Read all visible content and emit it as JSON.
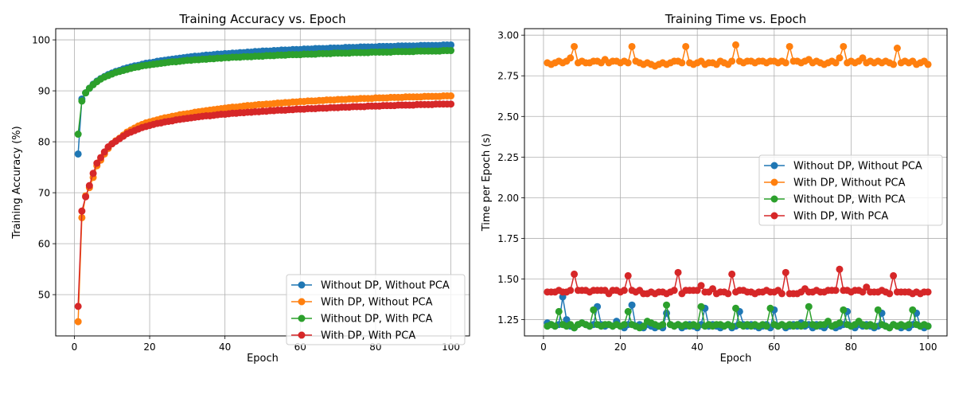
{
  "colors": {
    "blue": "#1f77b4",
    "orange": "#ff7f0e",
    "green": "#2ca02c",
    "red": "#d62728",
    "grid": "#b0b0b0"
  },
  "chart_data": [
    {
      "type": "line",
      "title": "Training Accuracy vs. Epoch",
      "xlabel": "Epoch",
      "ylabel": "Training Accuracy (%)",
      "xlim": [
        -4.95,
        104.95
      ],
      "ylim": [
        41.9,
        102.2
      ],
      "xticks": [
        0,
        20,
        40,
        60,
        80,
        100
      ],
      "yticks": [
        50,
        60,
        70,
        80,
        90,
        100
      ],
      "grid": true,
      "legend": "lower right",
      "marker": "circle",
      "x": [
        1,
        2,
        3,
        4,
        5,
        6,
        7,
        8,
        9,
        10,
        11,
        12,
        13,
        14,
        15,
        16,
        17,
        18,
        19,
        20,
        21,
        22,
        23,
        24,
        25,
        26,
        27,
        28,
        29,
        30,
        31,
        32,
        33,
        34,
        35,
        36,
        37,
        38,
        39,
        40,
        41,
        42,
        43,
        44,
        45,
        46,
        47,
        48,
        49,
        50,
        51,
        52,
        53,
        54,
        55,
        56,
        57,
        58,
        59,
        60,
        61,
        62,
        63,
        64,
        65,
        66,
        67,
        68,
        69,
        70,
        71,
        72,
        73,
        74,
        75,
        76,
        77,
        78,
        79,
        80,
        81,
        82,
        83,
        84,
        85,
        86,
        87,
        88,
        89,
        90,
        91,
        92,
        93,
        94,
        95,
        96,
        97,
        98,
        99,
        100
      ],
      "series": [
        {
          "name": "Without DP, Without PCA",
          "color": "#1f77b4",
          "values": [
            77.6,
            88.4,
            89.6,
            90.5,
            91.3,
            91.9,
            92.4,
            92.8,
            93.2,
            93.5,
            93.8,
            94.0,
            94.3,
            94.5,
            94.7,
            94.9,
            95.0,
            95.2,
            95.4,
            95.5,
            95.6,
            95.8,
            95.9,
            96.0,
            96.1,
            96.2,
            96.3,
            96.4,
            96.5,
            96.6,
            96.7,
            96.8,
            96.8,
            96.9,
            97.0,
            97.0,
            97.1,
            97.2,
            97.2,
            97.3,
            97.3,
            97.4,
            97.4,
            97.5,
            97.5,
            97.6,
            97.6,
            97.7,
            97.7,
            97.8,
            97.8,
            97.8,
            97.9,
            97.9,
            98.0,
            98.0,
            98.0,
            98.1,
            98.1,
            98.1,
            98.2,
            98.2,
            98.2,
            98.3,
            98.3,
            98.3,
            98.3,
            98.4,
            98.4,
            98.4,
            98.4,
            98.5,
            98.5,
            98.5,
            98.5,
            98.6,
            98.6,
            98.6,
            98.6,
            98.6,
            98.7,
            98.7,
            98.7,
            98.7,
            98.7,
            98.8,
            98.8,
            98.8,
            98.8,
            98.8,
            98.8,
            98.9,
            98.9,
            98.9,
            98.9,
            98.9,
            98.9,
            99.0,
            99.0,
            99.0
          ]
        },
        {
          "name": "With DP, Without PCA",
          "color": "#ff7f0e",
          "values": [
            44.7,
            65.1,
            69.4,
            71.0,
            73.0,
            75.3,
            76.4,
            77.6,
            78.7,
            79.6,
            80.2,
            80.7,
            81.3,
            81.9,
            82.3,
            82.7,
            83.1,
            83.4,
            83.7,
            83.9,
            84.1,
            84.3,
            84.5,
            84.7,
            84.8,
            85.0,
            85.1,
            85.3,
            85.4,
            85.5,
            85.6,
            85.8,
            85.9,
            86.0,
            86.1,
            86.2,
            86.3,
            86.4,
            86.5,
            86.6,
            86.7,
            86.8,
            86.8,
            86.9,
            87.0,
            87.1,
            87.1,
            87.2,
            87.3,
            87.3,
            87.4,
            87.4,
            87.5,
            87.6,
            87.6,
            87.7,
            87.7,
            87.8,
            87.8,
            87.9,
            87.9,
            88.0,
            88.0,
            88.0,
            88.1,
            88.1,
            88.2,
            88.2,
            88.2,
            88.3,
            88.3,
            88.3,
            88.4,
            88.4,
            88.4,
            88.5,
            88.5,
            88.5,
            88.5,
            88.6,
            88.6,
            88.6,
            88.6,
            88.7,
            88.7,
            88.7,
            88.7,
            88.8,
            88.8,
            88.8,
            88.8,
            88.8,
            88.9,
            88.9,
            88.9,
            88.9,
            88.9,
            89.0,
            89.0,
            89.0
          ]
        },
        {
          "name": "Without DP, With PCA",
          "color": "#2ca02c",
          "values": [
            81.5,
            88.0,
            89.6,
            90.5,
            91.2,
            91.8,
            92.3,
            92.7,
            93.0,
            93.3,
            93.6,
            93.8,
            94.0,
            94.2,
            94.4,
            94.6,
            94.7,
            94.9,
            95.0,
            95.1,
            95.2,
            95.3,
            95.4,
            95.5,
            95.6,
            95.7,
            95.7,
            95.8,
            95.9,
            96.0,
            96.0,
            96.1,
            96.1,
            96.2,
            96.2,
            96.3,
            96.3,
            96.4,
            96.4,
            96.5,
            96.5,
            96.6,
            96.6,
            96.6,
            96.7,
            96.7,
            96.7,
            96.8,
            96.8,
            96.8,
            96.9,
            96.9,
            96.9,
            97.0,
            97.0,
            97.0,
            97.1,
            97.1,
            97.1,
            97.1,
            97.2,
            97.2,
            97.2,
            97.2,
            97.3,
            97.3,
            97.3,
            97.3,
            97.4,
            97.4,
            97.4,
            97.4,
            97.4,
            97.5,
            97.5,
            97.5,
            97.5,
            97.5,
            97.6,
            97.6,
            97.6,
            97.6,
            97.6,
            97.6,
            97.7,
            97.7,
            97.7,
            97.7,
            97.7,
            97.7,
            97.8,
            97.8,
            97.8,
            97.8,
            97.8,
            97.8,
            97.8,
            97.9,
            97.9,
            97.9
          ]
        },
        {
          "name": "With DP, With PCA",
          "color": "#d62728",
          "values": [
            47.7,
            66.4,
            69.2,
            71.4,
            73.8,
            75.8,
            76.9,
            78.0,
            79.0,
            79.6,
            80.1,
            80.6,
            81.1,
            81.6,
            81.9,
            82.2,
            82.5,
            82.8,
            83.0,
            83.2,
            83.4,
            83.6,
            83.7,
            83.9,
            84.0,
            84.1,
            84.3,
            84.4,
            84.5,
            84.6,
            84.7,
            84.8,
            84.9,
            85.0,
            85.1,
            85.1,
            85.2,
            85.3,
            85.4,
            85.4,
            85.5,
            85.6,
            85.6,
            85.7,
            85.7,
            85.8,
            85.8,
            85.9,
            85.9,
            86.0,
            86.0,
            86.1,
            86.1,
            86.2,
            86.2,
            86.2,
            86.3,
            86.3,
            86.4,
            86.4,
            86.4,
            86.5,
            86.5,
            86.5,
            86.6,
            86.6,
            86.6,
            86.7,
            86.7,
            86.7,
            86.8,
            86.8,
            86.8,
            86.9,
            86.9,
            86.9,
            86.9,
            87.0,
            87.0,
            87.0,
            87.0,
            87.1,
            87.1,
            87.1,
            87.1,
            87.2,
            87.2,
            87.2,
            87.2,
            87.2,
            87.3,
            87.3,
            87.3,
            87.3,
            87.3,
            87.4,
            87.4,
            87.4,
            87.4,
            87.4
          ]
        }
      ]
    },
    {
      "type": "line",
      "title": "Training Time vs. Epoch",
      "xlabel": "Epoch",
      "ylabel": "Time per Epoch (s)",
      "xlim": [
        -4.95,
        104.95
      ],
      "ylim": [
        1.15,
        3.04
      ],
      "xticks": [
        0,
        20,
        40,
        60,
        80,
        100
      ],
      "yticks": [
        1.25,
        1.5,
        1.75,
        2.0,
        2.25,
        2.5,
        2.75,
        3.0
      ],
      "ytick_labels": [
        "1.25",
        "1.50",
        "1.75",
        "2.00",
        "2.25",
        "2.50",
        "2.75",
        "3.00"
      ],
      "grid": true,
      "legend": "center right",
      "marker": "circle",
      "x": [
        1,
        2,
        3,
        4,
        5,
        6,
        7,
        8,
        9,
        10,
        11,
        12,
        13,
        14,
        15,
        16,
        17,
        18,
        19,
        20,
        21,
        22,
        23,
        24,
        25,
        26,
        27,
        28,
        29,
        30,
        31,
        32,
        33,
        34,
        35,
        36,
        37,
        38,
        39,
        40,
        41,
        42,
        43,
        44,
        45,
        46,
        47,
        48,
        49,
        50,
        51,
        52,
        53,
        54,
        55,
        56,
        57,
        58,
        59,
        60,
        61,
        62,
        63,
        64,
        65,
        66,
        67,
        68,
        69,
        70,
        71,
        72,
        73,
        74,
        75,
        76,
        77,
        78,
        79,
        80,
        81,
        82,
        83,
        84,
        85,
        86,
        87,
        88,
        89,
        90,
        91,
        92,
        93,
        94,
        95,
        96,
        97,
        98,
        99,
        100
      ],
      "series": [
        {
          "name": "Without DP, Without PCA",
          "color": "#1f77b4",
          "values": [
            1.23,
            1.22,
            1.21,
            1.22,
            1.39,
            1.25,
            1.21,
            1.2,
            1.22,
            1.23,
            1.22,
            1.21,
            1.22,
            1.33,
            1.22,
            1.21,
            1.22,
            1.21,
            1.24,
            1.21,
            1.2,
            1.22,
            1.34,
            1.21,
            1.22,
            1.2,
            1.22,
            1.21,
            1.2,
            1.21,
            1.2,
            1.29,
            1.22,
            1.21,
            1.22,
            1.2,
            1.21,
            1.22,
            1.21,
            1.2,
            1.22,
            1.32,
            1.21,
            1.22,
            1.21,
            1.2,
            1.21,
            1.22,
            1.2,
            1.21,
            1.3,
            1.22,
            1.21,
            1.22,
            1.21,
            1.2,
            1.21,
            1.22,
            1.2,
            1.31,
            1.21,
            1.22,
            1.2,
            1.21,
            1.22,
            1.21,
            1.23,
            1.21,
            1.22,
            1.2,
            1.22,
            1.21,
            1.2,
            1.22,
            1.21,
            1.2,
            1.21,
            1.22,
            1.3,
            1.21,
            1.2,
            1.22,
            1.21,
            1.22,
            1.21,
            1.2,
            1.21,
            1.29,
            1.21,
            1.2,
            1.22,
            1.21,
            1.2,
            1.21,
            1.2,
            1.22,
            1.29,
            1.21,
            1.2,
            1.21
          ]
        },
        {
          "name": "With DP, Without PCA",
          "color": "#ff7f0e",
          "values": [
            2.83,
            2.82,
            2.83,
            2.84,
            2.83,
            2.84,
            2.86,
            2.93,
            2.83,
            2.84,
            2.83,
            2.83,
            2.84,
            2.84,
            2.83,
            2.85,
            2.83,
            2.84,
            2.84,
            2.83,
            2.84,
            2.83,
            2.93,
            2.84,
            2.83,
            2.82,
            2.83,
            2.82,
            2.81,
            2.82,
            2.83,
            2.82,
            2.83,
            2.84,
            2.84,
            2.83,
            2.93,
            2.83,
            2.82,
            2.83,
            2.84,
            2.82,
            2.83,
            2.83,
            2.82,
            2.84,
            2.83,
            2.82,
            2.84,
            2.94,
            2.84,
            2.83,
            2.84,
            2.84,
            2.83,
            2.84,
            2.84,
            2.83,
            2.84,
            2.84,
            2.83,
            2.84,
            2.83,
            2.93,
            2.84,
            2.84,
            2.83,
            2.84,
            2.85,
            2.83,
            2.84,
            2.83,
            2.82,
            2.83,
            2.84,
            2.83,
            2.86,
            2.93,
            2.83,
            2.84,
            2.83,
            2.84,
            2.86,
            2.83,
            2.84,
            2.83,
            2.84,
            2.83,
            2.84,
            2.83,
            2.82,
            2.92,
            2.83,
            2.84,
            2.83,
            2.84,
            2.82,
            2.83,
            2.84,
            2.82
          ]
        },
        {
          "name": "Without DP, With PCA",
          "color": "#2ca02c",
          "values": [
            1.21,
            1.22,
            1.21,
            1.3,
            1.22,
            1.21,
            1.22,
            1.2,
            1.22,
            1.23,
            1.22,
            1.21,
            1.31,
            1.22,
            1.21,
            1.22,
            1.22,
            1.21,
            1.22,
            1.21,
            1.22,
            1.3,
            1.22,
            1.21,
            1.2,
            1.21,
            1.24,
            1.23,
            1.22,
            1.21,
            1.22,
            1.34,
            1.22,
            1.21,
            1.22,
            1.21,
            1.22,
            1.21,
            1.22,
            1.21,
            1.33,
            1.21,
            1.22,
            1.21,
            1.22,
            1.22,
            1.21,
            1.22,
            1.21,
            1.32,
            1.22,
            1.21,
            1.22,
            1.21,
            1.22,
            1.21,
            1.22,
            1.21,
            1.32,
            1.22,
            1.21,
            1.22,
            1.21,
            1.22,
            1.21,
            1.22,
            1.21,
            1.22,
            1.33,
            1.22,
            1.21,
            1.22,
            1.22,
            1.24,
            1.21,
            1.22,
            1.23,
            1.31,
            1.22,
            1.21,
            1.22,
            1.24,
            1.22,
            1.21,
            1.22,
            1.21,
            1.31,
            1.22,
            1.21,
            1.2,
            1.22,
            1.21,
            1.22,
            1.21,
            1.22,
            1.31,
            1.22,
            1.21,
            1.22,
            1.21
          ]
        },
        {
          "name": "With DP, With PCA",
          "color": "#d62728",
          "values": [
            1.42,
            1.42,
            1.42,
            1.43,
            1.42,
            1.42,
            1.43,
            1.53,
            1.43,
            1.43,
            1.43,
            1.42,
            1.43,
            1.43,
            1.43,
            1.43,
            1.41,
            1.43,
            1.43,
            1.42,
            1.43,
            1.52,
            1.43,
            1.42,
            1.43,
            1.41,
            1.41,
            1.42,
            1.41,
            1.42,
            1.42,
            1.41,
            1.42,
            1.43,
            1.54,
            1.41,
            1.43,
            1.43,
            1.43,
            1.43,
            1.46,
            1.42,
            1.42,
            1.44,
            1.41,
            1.42,
            1.42,
            1.41,
            1.53,
            1.42,
            1.43,
            1.43,
            1.42,
            1.42,
            1.41,
            1.42,
            1.42,
            1.43,
            1.42,
            1.42,
            1.43,
            1.41,
            1.54,
            1.41,
            1.41,
            1.41,
            1.42,
            1.44,
            1.42,
            1.42,
            1.43,
            1.42,
            1.42,
            1.43,
            1.43,
            1.43,
            1.56,
            1.43,
            1.43,
            1.42,
            1.43,
            1.43,
            1.42,
            1.45,
            1.42,
            1.42,
            1.42,
            1.43,
            1.42,
            1.41,
            1.52,
            1.42,
            1.42,
            1.42,
            1.42,
            1.41,
            1.42,
            1.41,
            1.42,
            1.42
          ]
        }
      ]
    }
  ]
}
